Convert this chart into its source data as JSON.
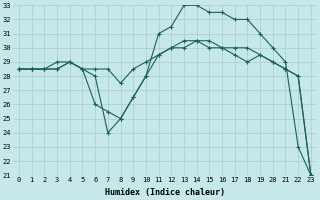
{
  "xlabel": "Humidex (Indice chaleur)",
  "bg_color": "#c6e8e8",
  "grid_color": "#a8cccc",
  "line_color": "#1a6060",
  "line1_x": [
    0,
    1,
    2,
    3,
    4,
    5,
    6,
    7,
    8,
    9,
    10,
    11,
    12,
    13,
    14,
    15,
    16,
    17,
    18,
    19,
    20,
    21,
    22,
    23
  ],
  "line1_y": [
    28.5,
    28.5,
    28.5,
    29.0,
    29.0,
    28.5,
    26.0,
    25.5,
    25.0,
    26.5,
    28.0,
    31.0,
    31.5,
    33.0,
    33.0,
    32.5,
    32.5,
    32.0,
    32.0,
    31.0,
    30.0,
    29.0,
    23.0,
    21.0
  ],
  "line2_x": [
    0,
    1,
    2,
    3,
    4,
    5,
    6,
    7,
    8,
    9,
    10,
    11,
    12,
    13,
    14,
    15,
    16,
    17,
    18,
    19,
    20,
    21,
    22,
    23
  ],
  "line2_y": [
    28.5,
    28.5,
    28.5,
    28.5,
    29.0,
    28.5,
    28.0,
    24.0,
    25.0,
    26.5,
    28.0,
    29.5,
    30.0,
    30.5,
    30.5,
    30.0,
    30.0,
    29.5,
    29.0,
    29.5,
    29.0,
    28.5,
    28.0,
    21.0
  ],
  "line3_x": [
    0,
    1,
    2,
    3,
    4,
    5,
    6,
    7,
    8,
    9,
    10,
    11,
    12,
    13,
    14,
    15,
    16,
    17,
    18,
    19,
    20,
    21,
    22,
    23
  ],
  "line3_y": [
    28.5,
    28.5,
    28.5,
    28.5,
    29.0,
    28.5,
    28.5,
    28.5,
    27.5,
    28.5,
    29.0,
    29.5,
    30.0,
    30.0,
    30.5,
    30.5,
    30.0,
    30.0,
    30.0,
    29.5,
    29.0,
    28.5,
    28.0,
    21.0
  ],
  "ylim": [
    21,
    33
  ],
  "xlim": [
    -0.5,
    23.5
  ],
  "yticks": [
    21,
    22,
    23,
    24,
    25,
    26,
    27,
    28,
    29,
    30,
    31,
    32,
    33
  ],
  "xticks": [
    0,
    1,
    2,
    3,
    4,
    5,
    6,
    7,
    8,
    9,
    10,
    11,
    12,
    13,
    14,
    15,
    16,
    17,
    18,
    19,
    20,
    21,
    22,
    23
  ],
  "tick_fontsize": 5.0,
  "xlabel_fontsize": 6.0,
  "lw": 0.8,
  "ms": 3.0
}
